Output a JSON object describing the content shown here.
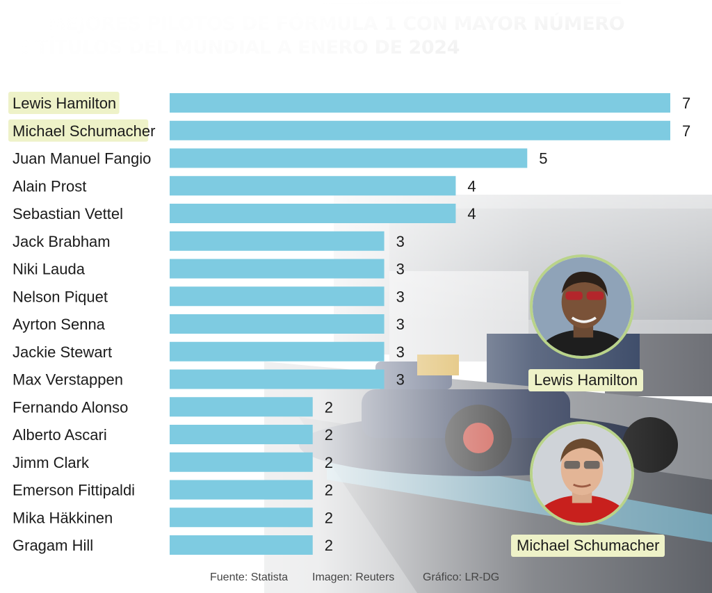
{
  "title": {
    "line1": "LOS MEJORES PILOTOS DE FÓRMULA 1 CON MAYOR NÚMERO",
    "line2": "DE TÍTULOS DEL MUNDIAL A ENERO DE 2024"
  },
  "chart_data": {
    "type": "bar",
    "orientation": "horizontal",
    "categories": [
      "Lewis Hamilton",
      "Michael Schumacher",
      "Juan Manuel Fangio",
      "Alain Prost",
      "Sebastian Vettel",
      "Jack Brabham",
      "Niki Lauda",
      "Nelson Piquet",
      "Ayrton Senna",
      "Jackie Stewart",
      "Max Verstappen",
      "Fernando Alonso",
      "Alberto Ascari",
      "Jimm Clark",
      "Emerson Fittipaldi",
      "Mika Häkkinen",
      "Gragam Hill"
    ],
    "values": [
      7,
      7,
      5,
      4,
      4,
      3,
      3,
      3,
      3,
      3,
      3,
      2,
      2,
      2,
      2,
      2,
      2
    ],
    "highlighted": [
      "Lewis Hamilton",
      "Michael Schumacher"
    ],
    "xlim": [
      0,
      7
    ],
    "grid": false,
    "bar_color": "#7ecbe1",
    "highlight_color": "#eef2c8"
  },
  "portraits": {
    "hamilton_label": "Lewis Hamilton",
    "schumacher_label": "Michael Schumacher",
    "ring_color": "#b9d38a"
  },
  "footer": {
    "source": "Fuente: Statista",
    "image": "Imagen: Reuters",
    "graphic": "Gráfico: LR-DG"
  }
}
